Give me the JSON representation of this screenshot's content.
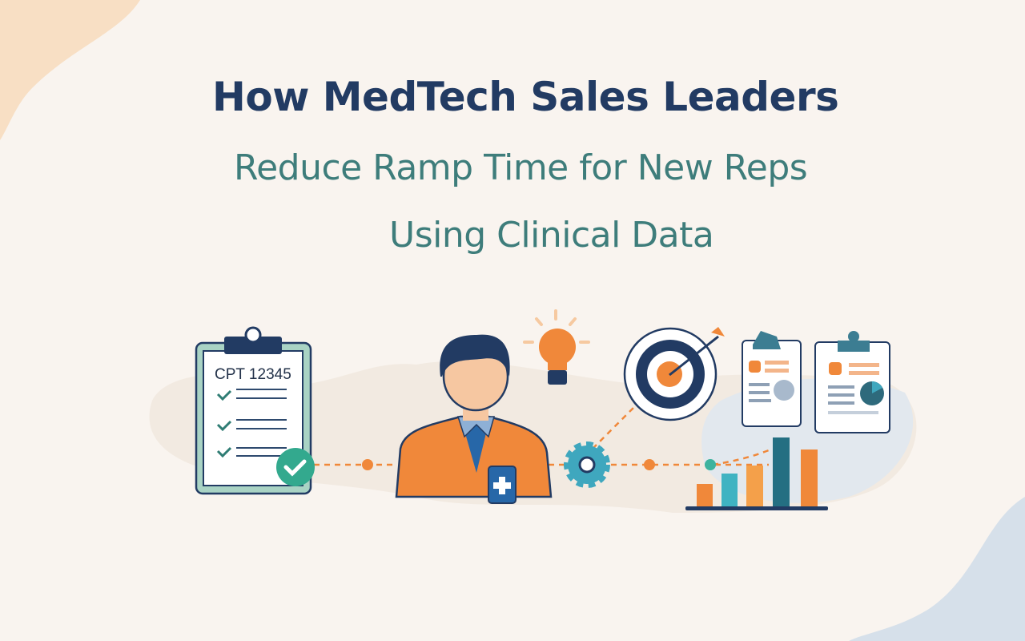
{
  "title": {
    "line1": "How MedTech Sales Leaders",
    "line2": "Reduce Ramp Time for New Reps",
    "line3": "Using Clinical Data"
  },
  "illustration": {
    "clipboard_code": "CPT 12345",
    "icons": [
      "clipboard-checklist-icon",
      "check-badge-icon",
      "sales-rep-avatar",
      "id-badge-icon",
      "lightbulb-icon",
      "gear-icon",
      "target-icon",
      "medical-report-icon",
      "medical-report-pie-icon",
      "bar-chart-icon"
    ]
  },
  "colors": {
    "navy": "#223b63",
    "teal": "#3e7d7b",
    "orange": "#f0883a",
    "background": "#f9f4ef"
  }
}
